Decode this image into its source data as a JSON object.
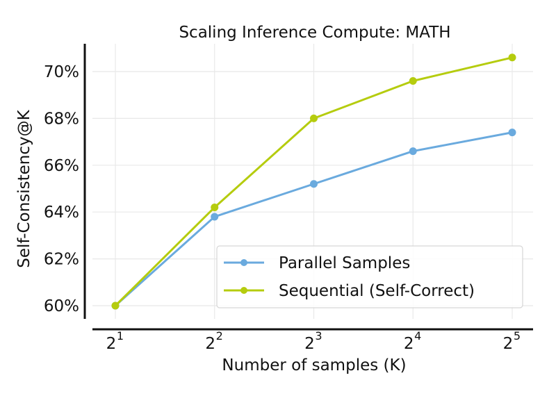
{
  "chart_data": {
    "type": "line",
    "title": "Scaling Inference Compute: MATH",
    "xlabel": "Number of samples (K)",
    "ylabel": "Self-Consistency@K",
    "x": [
      2,
      4,
      8,
      16,
      32
    ],
    "x_tick_labels": [
      {
        "base": "2",
        "exp": "1"
      },
      {
        "base": "2",
        "exp": "2"
      },
      {
        "base": "2",
        "exp": "3"
      },
      {
        "base": "2",
        "exp": "4"
      },
      {
        "base": "2",
        "exp": "5"
      }
    ],
    "x_scale": "log2",
    "y_ticks": [
      60,
      62,
      64,
      66,
      68,
      70
    ],
    "y_tick_labels": [
      "60%",
      "62%",
      "64%",
      "66%",
      "68%",
      "70%"
    ],
    "ylim": [
      59.5,
      71.0
    ],
    "grid": true,
    "legend_position": "lower right",
    "series": [
      {
        "name": "Parallel Samples",
        "color": "#6aaade",
        "values": [
          60.0,
          63.8,
          65.2,
          66.6,
          67.4
        ]
      },
      {
        "name": "Sequential (Self-Correct)",
        "color": "#b5cc0e",
        "values": [
          60.0,
          64.2,
          68.0,
          69.6,
          70.6
        ]
      }
    ]
  }
}
